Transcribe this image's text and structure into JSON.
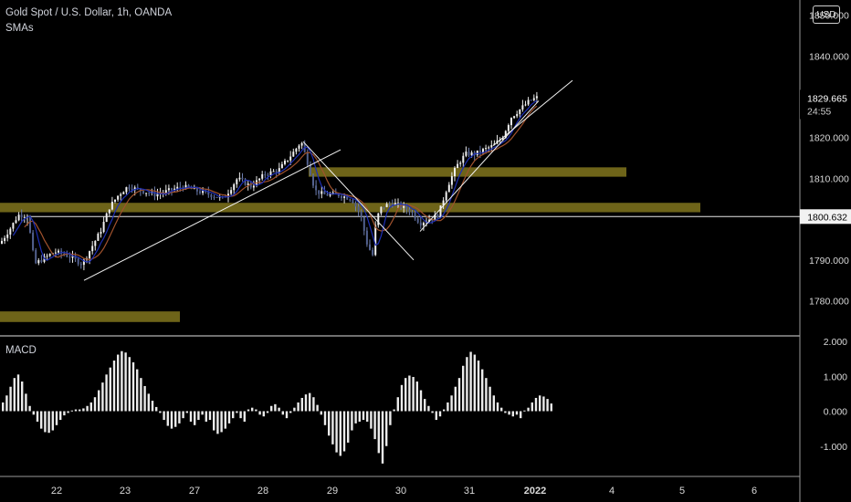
{
  "header": {
    "title": "Gold Spot / U.S. Dollar, 1h, OANDA",
    "indicator": "SMAs",
    "currency": "USD",
    "countdown": "24:55"
  },
  "chart_data": [
    {
      "type": "candlestick",
      "title": "Gold Spot / U.S. Dollar, 1h, OANDA",
      "ylim": [
        1771.4,
        1853.7
      ],
      "y_ticks": [
        "1850.000",
        "1840.000",
        "1829.665",
        "1820.000",
        "1810.000",
        "1800.632",
        "1790.000",
        "1780.000"
      ],
      "x_ticks": [
        "22",
        "23",
        "27",
        "28",
        "29",
        "30",
        "31",
        "2022",
        "4",
        "5",
        "6"
      ],
      "last_price": "1829.665",
      "marked_level": "1800.632",
      "price_path": [
        [
          0,
          1794
        ],
        [
          12,
          1798
        ],
        [
          20,
          1801
        ],
        [
          30,
          1801
        ],
        [
          38,
          1789
        ],
        [
          45,
          1790
        ],
        [
          60,
          1792
        ],
        [
          75,
          1791
        ],
        [
          90,
          1789
        ],
        [
          100,
          1793
        ],
        [
          110,
          1797
        ],
        [
          120,
          1803
        ],
        [
          130,
          1806
        ],
        [
          140,
          1808
        ],
        [
          155,
          1807
        ],
        [
          170,
          1806
        ],
        [
          185,
          1807
        ],
        [
          200,
          1808
        ],
        [
          215,
          1807
        ],
        [
          230,
          1806
        ],
        [
          245,
          1805
        ],
        [
          260,
          1810
        ],
        [
          275,
          1808
        ],
        [
          290,
          1811
        ],
        [
          305,
          1812
        ],
        [
          320,
          1816
        ],
        [
          330,
          1819
        ],
        [
          338,
          1813
        ],
        [
          345,
          1807
        ],
        [
          355,
          1806
        ],
        [
          370,
          1806
        ],
        [
          385,
          1805
        ],
        [
          395,
          1801
        ],
        [
          402,
          1794
        ],
        [
          408,
          1791
        ],
        [
          412,
          1800
        ],
        [
          418,
          1803
        ],
        [
          430,
          1804
        ],
        [
          440,
          1803
        ],
        [
          450,
          1802
        ],
        [
          460,
          1799
        ],
        [
          470,
          1800
        ],
        [
          480,
          1801
        ],
        [
          490,
          1808
        ],
        [
          500,
          1813
        ],
        [
          510,
          1816
        ],
        [
          520,
          1816
        ],
        [
          530,
          1817
        ],
        [
          540,
          1818
        ],
        [
          550,
          1820
        ],
        [
          560,
          1825
        ],
        [
          570,
          1827
        ],
        [
          580,
          1829
        ],
        [
          590,
          1830
        ]
      ],
      "support_zones": [
        {
          "low": 1801.7,
          "high": 1804.0
        },
        {
          "low": 1810.4,
          "high": 1812.7
        },
        {
          "low": 1774.8,
          "high": 1777.4
        }
      ],
      "trend_lines": [
        {
          "from": [
            92,
            1785
          ],
          "to": [
            373,
            1817
          ]
        },
        {
          "from": [
            332,
            1819
          ],
          "to": [
            453,
            1790
          ]
        },
        {
          "from": [
            460,
            1797
          ],
          "to": [
            590,
            1829
          ]
        },
        {
          "from": [
            540,
            1818
          ],
          "to": [
            627,
            1834
          ]
        }
      ],
      "sma_color": "#1e2fb5",
      "sma2_color": "#a0522d",
      "zone_color": "#6e6419"
    },
    {
      "type": "bar",
      "title": "MACD",
      "ylim": [
        -2.0,
        2.0
      ],
      "y_ticks": [
        "2.000",
        "1.000",
        "0.000",
        "-1.000"
      ],
      "values": [
        0.25,
        0.45,
        0.7,
        0.95,
        1.05,
        0.85,
        0.5,
        0.15,
        -0.1,
        -0.3,
        -0.5,
        -0.6,
        -0.62,
        -0.55,
        -0.4,
        -0.25,
        -0.12,
        -0.05,
        0.02,
        0.05,
        0.05,
        0.08,
        0.15,
        0.25,
        0.4,
        0.6,
        0.82,
        1.05,
        1.25,
        1.45,
        1.62,
        1.72,
        1.68,
        1.55,
        1.4,
        1.2,
        0.95,
        0.72,
        0.5,
        0.3,
        0.12,
        -0.05,
        -0.25,
        -0.42,
        -0.5,
        -0.45,
        -0.35,
        -0.2,
        -0.05,
        -0.3,
        -0.4,
        -0.25,
        -0.1,
        -0.3,
        -0.25,
        -0.55,
        -0.65,
        -0.6,
        -0.5,
        -0.35,
        -0.2,
        -0.05,
        -0.2,
        -0.3,
        0.05,
        0.1,
        0.05,
        -0.1,
        -0.15,
        -0.05,
        0.15,
        0.2,
        0.1,
        -0.1,
        -0.2,
        -0.05,
        0.1,
        0.25,
        0.38,
        0.48,
        0.52,
        0.4,
        0.18,
        -0.1,
        -0.4,
        -0.7,
        -0.95,
        -1.18,
        -1.28,
        -1.15,
        -0.9,
        -0.55,
        -0.35,
        -0.3,
        -0.25,
        -0.3,
        -0.5,
        -0.8,
        -1.2,
        -1.5,
        -1.0,
        -0.4,
        0.05,
        0.4,
        0.75,
        0.95,
        1.02,
        0.98,
        0.85,
        0.6,
        0.35,
        0.15,
        -0.05,
        -0.25,
        -0.15,
        0.05,
        0.25,
        0.45,
        0.7,
        0.95,
        1.3,
        1.55,
        1.7,
        1.62,
        1.45,
        1.2,
        0.95,
        0.7,
        0.45,
        0.25,
        0.1,
        -0.05,
        -0.1,
        -0.15,
        -0.1,
        -0.2,
        0.02,
        0.1,
        0.25,
        0.38,
        0.45,
        0.42,
        0.35,
        0.22
      ]
    }
  ]
}
